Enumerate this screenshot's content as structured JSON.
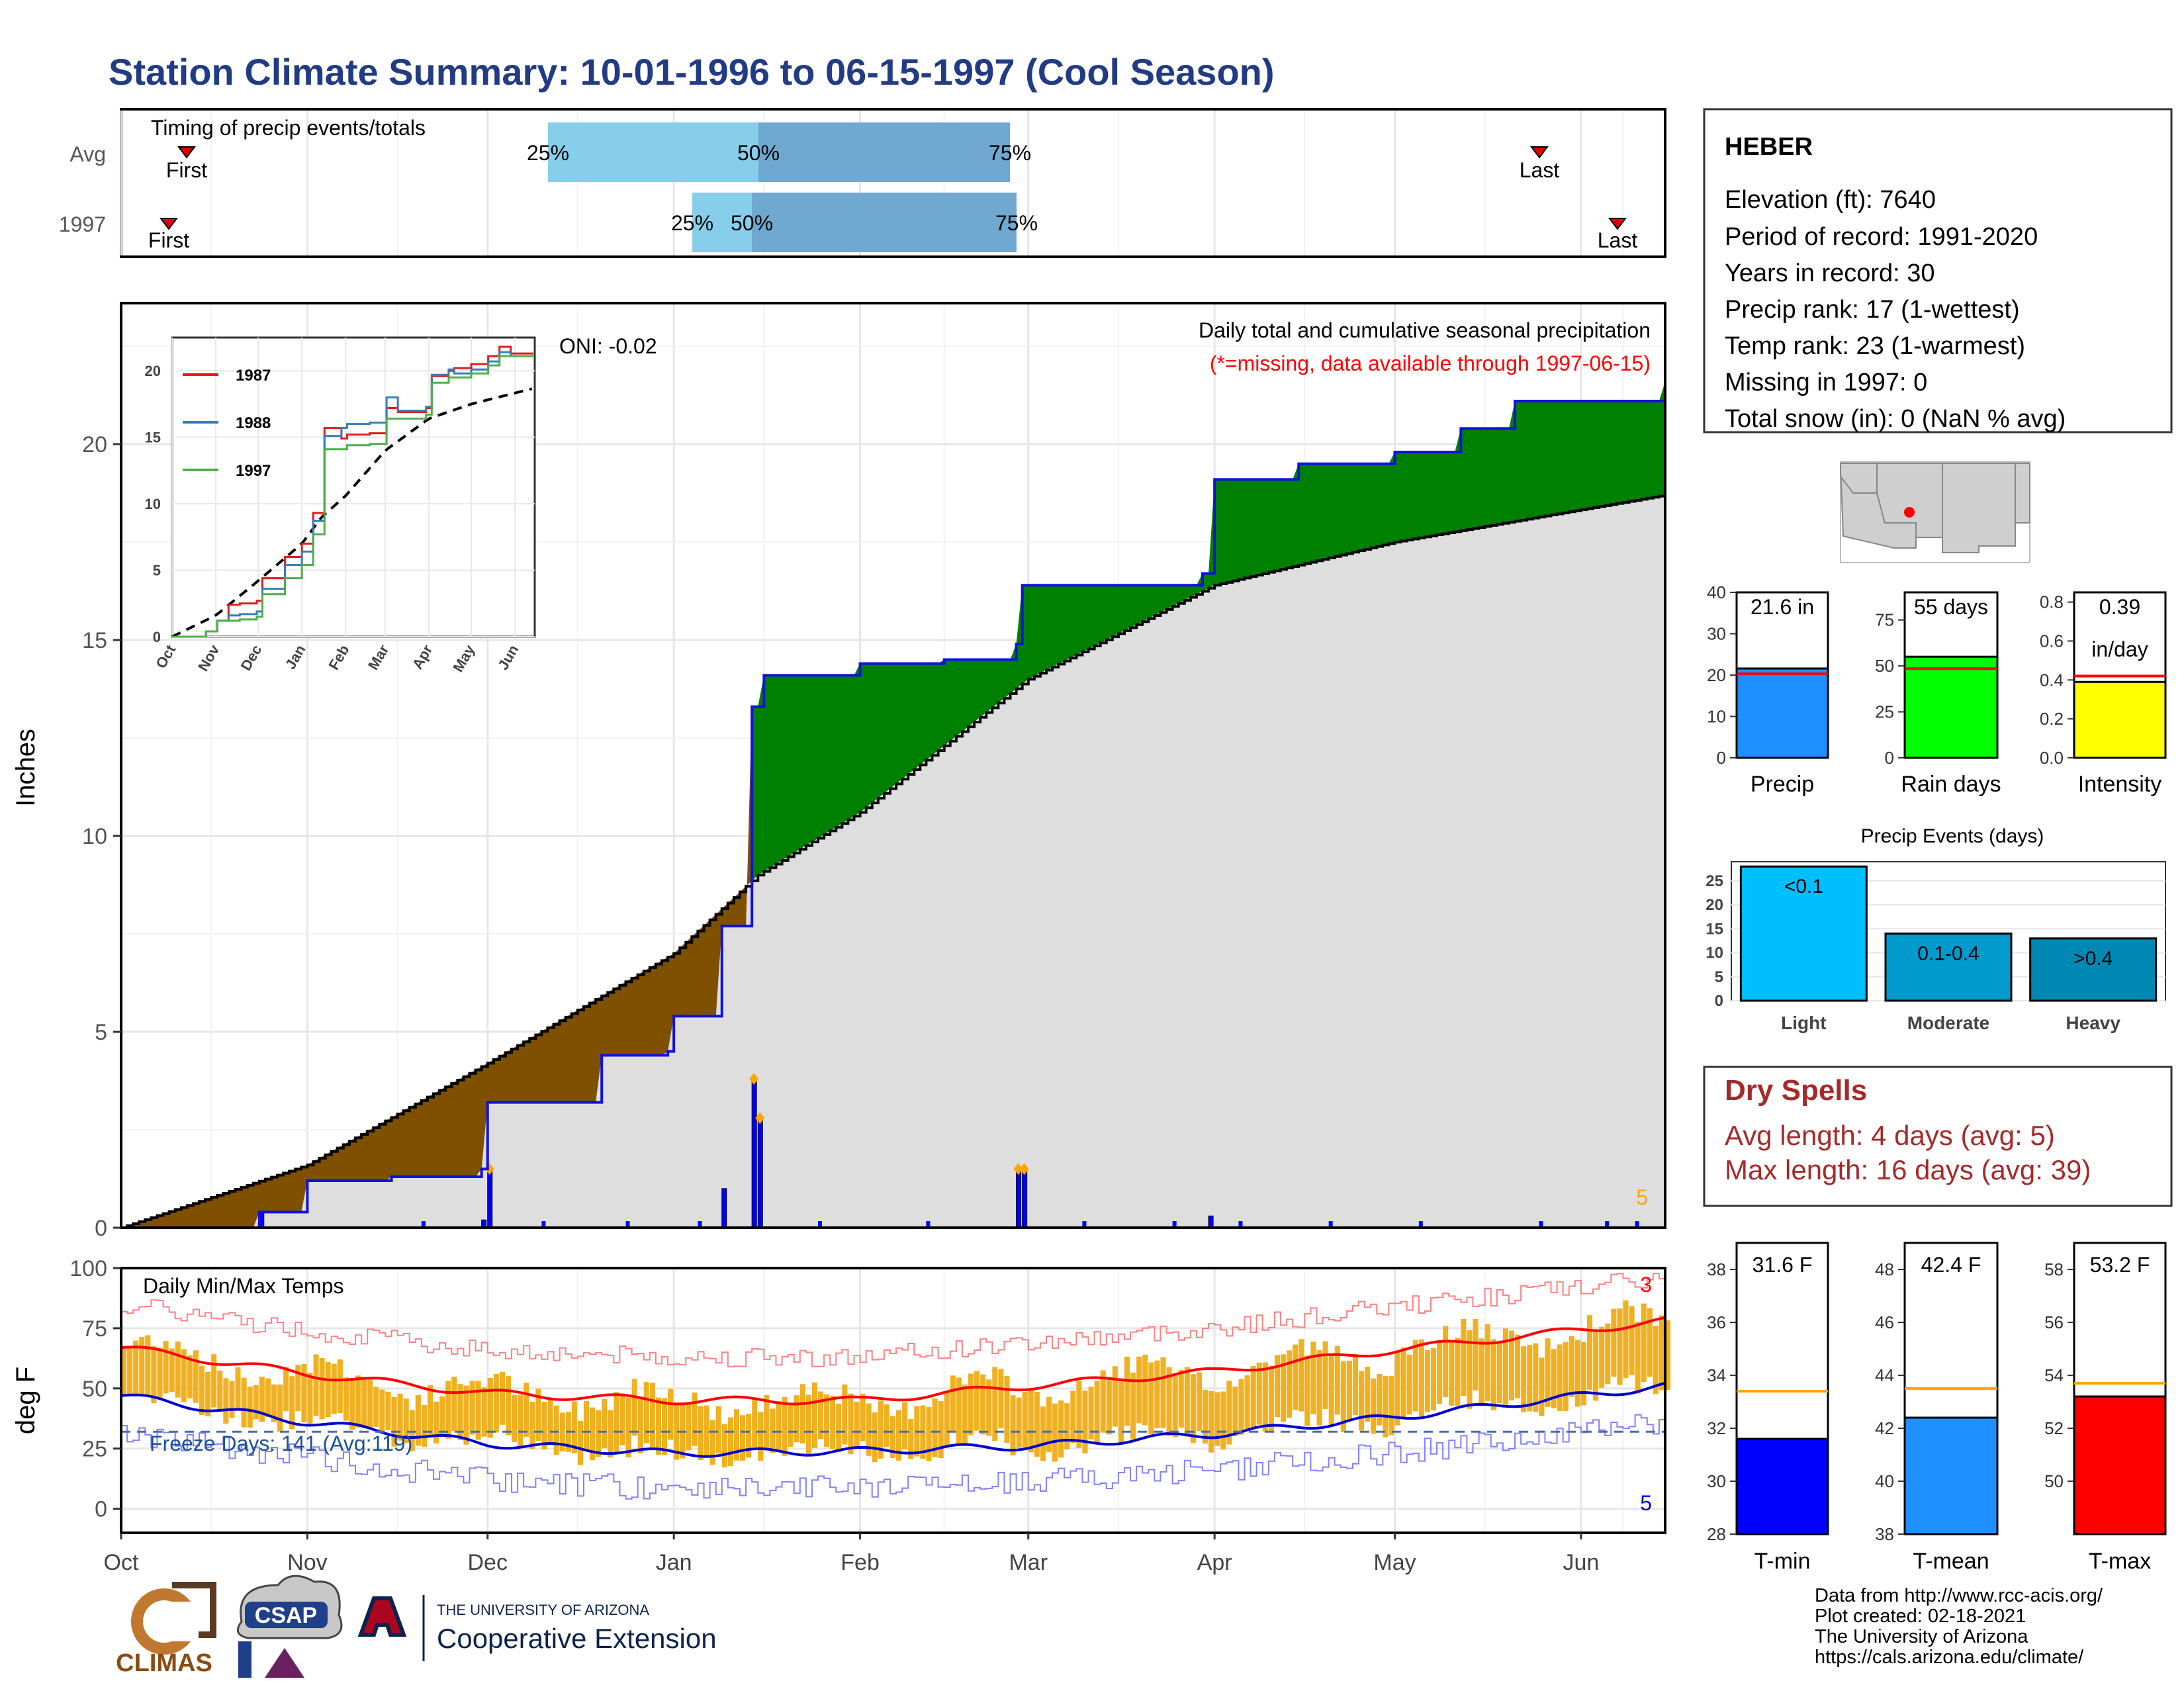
{
  "title": "Station Climate Summary: 10-01-1996 to 06-15-1997 (Cool Season)",
  "colors": {
    "title": "#213b85",
    "precip_above_avg": "#008000",
    "precip_below_avg": "#7f5000",
    "avg_fill": "#dedede",
    "daily_bar": "#0000ff",
    "quartile_light": "#87ceeb",
    "quartile_dark": "#6fa8d0",
    "temp_bar": "#f0b020",
    "dry_spells": "#a52a2a"
  },
  "timing_panel": {
    "title": "Timing of precip events/totals",
    "rows": [
      "Avg",
      "1997"
    ],
    "first_label": "First",
    "last_label": "Last",
    "q25": "25%",
    "q50": "50%",
    "q75": "75%"
  },
  "precip_panel": {
    "ylabel": "Inches",
    "title": "Daily total and cumulative seasonal precipitation",
    "subtitle": "(*=missing, data available through 1997-06-15)",
    "oni": "ONI: -0.02",
    "corner_count": "5",
    "y_ticks": [
      "0",
      "5",
      "10",
      "15",
      "20"
    ]
  },
  "inset": {
    "legend": [
      "1987",
      "1988",
      "1997"
    ],
    "legend_colors": [
      "#e41a1c",
      "#377eb8",
      "#4daf4a"
    ],
    "y_ticks": [
      "0",
      "5",
      "10",
      "15",
      "20"
    ],
    "x_ticks": [
      "Oct",
      "Nov",
      "Dec",
      "Jan",
      "Feb",
      "Mar",
      "Apr",
      "May",
      "Jun"
    ]
  },
  "temp_panel": {
    "ylabel": "deg F",
    "title": "Daily Min/Max Temps",
    "freeze": "Freeze Days: 141 (Avg:119)",
    "count_top": "3",
    "count_bottom": "5",
    "y_ticks": [
      "0",
      "25",
      "50",
      "75",
      "100"
    ]
  },
  "x_ticks": [
    "Oct",
    "Nov",
    "Dec",
    "Jan",
    "Feb",
    "Mar",
    "Apr",
    "May",
    "Jun"
  ],
  "station": {
    "name": "HEBER",
    "elevation": "Elevation (ft): 7640",
    "period": "Period of record: 1991-2020",
    "years": "Years in record: 30",
    "precip_rank": "Precip rank: 17 (1-wettest)",
    "temp_rank": "Temp rank: 23 (1-warmest)",
    "missing": "Missing in 1997: 0",
    "snow": "Total snow (in): 0 (NaN % avg)"
  },
  "summary_bars": [
    {
      "label": "Precip",
      "value_text": "21.6 in",
      "value": 21.6,
      "avg": 20.3,
      "ymax": 40,
      "ticks": [
        "0",
        "10",
        "20",
        "30",
        "40"
      ],
      "color": "#1e90ff"
    },
    {
      "label": "Rain days",
      "value_text": "55 days",
      "value": 55,
      "avg": 48.5,
      "ymax": 90,
      "ticks": [
        "0",
        "25",
        "50",
        "75"
      ],
      "color": "#00ff00"
    },
    {
      "label": "Intensity",
      "value_text": "0.39",
      "value_text2": "in/day",
      "value": 0.39,
      "avg": 0.42,
      "ymax": 0.85,
      "ticks": [
        "0.0",
        "0.2",
        "0.4",
        "0.6",
        "0.8"
      ],
      "color": "#ffff00"
    }
  ],
  "events_chart": {
    "title": "Precip Events (days)",
    "categories": [
      "Light",
      "Moderate",
      "Heavy"
    ],
    "bar_labels": [
      "<0.1",
      "0.1-0.4",
      ">0.4"
    ],
    "values": [
      28,
      14,
      13
    ],
    "colors": [
      "#00bfff",
      "#009acd",
      "#0088b5"
    ],
    "ticks": [
      "0",
      "5",
      "10",
      "15",
      "20",
      "25"
    ]
  },
  "dry_spells": {
    "title": "Dry Spells",
    "avg": "Avg length: 4 days (avg: 5)",
    "max": "Max length: 16 days (avg: 39)"
  },
  "temp_bars": [
    {
      "label": "T-min",
      "value_text": "31.6 F",
      "value": 31.6,
      "avg": 33.4,
      "ymin": 28,
      "ymax": 39,
      "ticks": [
        "28",
        "30",
        "32",
        "34",
        "36",
        "38"
      ],
      "color": "#0000ff"
    },
    {
      "label": "T-mean",
      "value_text": "42.4 F",
      "value": 42.4,
      "avg": 43.5,
      "ymin": 38,
      "ymax": 49,
      "ticks": [
        "38",
        "40",
        "42",
        "44",
        "46",
        "48"
      ],
      "color": "#1e90ff"
    },
    {
      "label": "T-max",
      "value_text": "53.2 F",
      "value": 53.2,
      "avg": 53.7,
      "ymin": 48,
      "ymax": 59,
      "ticks": [
        "50",
        "52",
        "54",
        "56",
        "58"
      ],
      "color": "#ff0000"
    }
  ],
  "footer": {
    "line1": "Data from http://www.rcc-acis.org/",
    "line2": "Plot created: 02-18-2021",
    "line3": "The University of Arizona",
    "line4": "https://cals.arizona.edu/climate/"
  },
  "logos": {
    "climas": "CLIMAS",
    "csap": "CSAP",
    "ua_small": "THE UNIVERSITY OF ARIZONA",
    "ua_big": "Cooperative Extension"
  },
  "chart_data": [
    {
      "type": "area",
      "title": "Daily total and cumulative seasonal precipitation",
      "ylabel": "Inches",
      "ylim": [
        0,
        23.5
      ],
      "x_range": [
        "1996-10-01",
        "1997-06-15"
      ],
      "series": [
        {
          "name": "1997",
          "x": [
            "1996-10-01",
            "1996-10-20",
            "1996-10-24",
            "1996-11-01",
            "1996-11-15",
            "1996-11-30",
            "1996-12-01",
            "1996-12-20",
            "1996-12-31",
            "1997-01-01",
            "1997-01-09",
            "1997-01-14",
            "1997-01-16",
            "1997-02-01",
            "1997-02-15",
            "1997-02-27",
            "1997-02-28",
            "1997-03-30",
            "1997-04-01",
            "1997-04-15",
            "1997-05-01",
            "1997-05-12",
            "1997-05-21",
            "1997-06-15"
          ],
          "y": [
            0.0,
            0.0,
            0.4,
            1.2,
            1.3,
            1.5,
            3.2,
            4.4,
            4.5,
            5.4,
            7.7,
            13.3,
            14.1,
            14.4,
            14.5,
            14.9,
            16.4,
            16.7,
            19.1,
            19.5,
            19.8,
            20.4,
            21.1,
            21.6
          ]
        },
        {
          "name": "Avg",
          "x": [
            "1996-10-01",
            "1996-11-01",
            "1996-12-01",
            "1997-01-01",
            "1997-01-15",
            "1997-02-01",
            "1997-03-01",
            "1997-04-01",
            "1997-05-01",
            "1997-06-15"
          ],
          "y": [
            0.0,
            1.6,
            4.2,
            7.0,
            9.0,
            10.6,
            14.0,
            16.4,
            17.5,
            18.7
          ]
        }
      ],
      "daily_precip": [
        {
          "date": "1996-10-24",
          "value": 0.4
        },
        {
          "date": "1996-11-30",
          "value": 0.2
        },
        {
          "date": "1996-12-01",
          "value": 1.5
        },
        {
          "date": "1997-01-09",
          "value": 1.0
        },
        {
          "date": "1997-01-14",
          "value": 3.8
        },
        {
          "date": "1997-01-15",
          "value": 2.8
        },
        {
          "date": "1997-02-27",
          "value": 1.5
        },
        {
          "date": "1997-02-28",
          "value": 1.5
        },
        {
          "date": "1997-03-31",
          "value": 0.3
        }
      ]
    },
    {
      "type": "line",
      "title": "Daily Min/Max Temps",
      "ylabel": "deg F",
      "ylim": [
        -10,
        100
      ],
      "series": [
        {
          "name": "Avg max",
          "x": [
            "1996-10-01",
            "1996-11-01",
            "1996-12-01",
            "1997-01-01",
            "1997-02-01",
            "1997-03-01",
            "1997-04-01",
            "1997-05-01",
            "1997-06-15"
          ],
          "y": [
            67,
            56,
            48,
            45,
            45,
            51,
            57,
            66,
            78
          ]
        },
        {
          "name": "Avg min",
          "x": [
            "1996-10-01",
            "1996-11-01",
            "1996-12-01",
            "1997-01-01",
            "1997-02-01",
            "1997-03-01",
            "1997-04-01",
            "1997-05-01",
            "1997-06-15"
          ],
          "y": [
            47,
            36,
            27,
            23,
            24,
            26,
            31,
            38,
            51
          ]
        }
      ],
      "freeze_line": 32
    },
    {
      "type": "bar",
      "title": "Precip Events (days)",
      "categories": [
        "Light",
        "Moderate",
        "Heavy"
      ],
      "values": [
        28,
        14,
        13
      ]
    }
  ]
}
